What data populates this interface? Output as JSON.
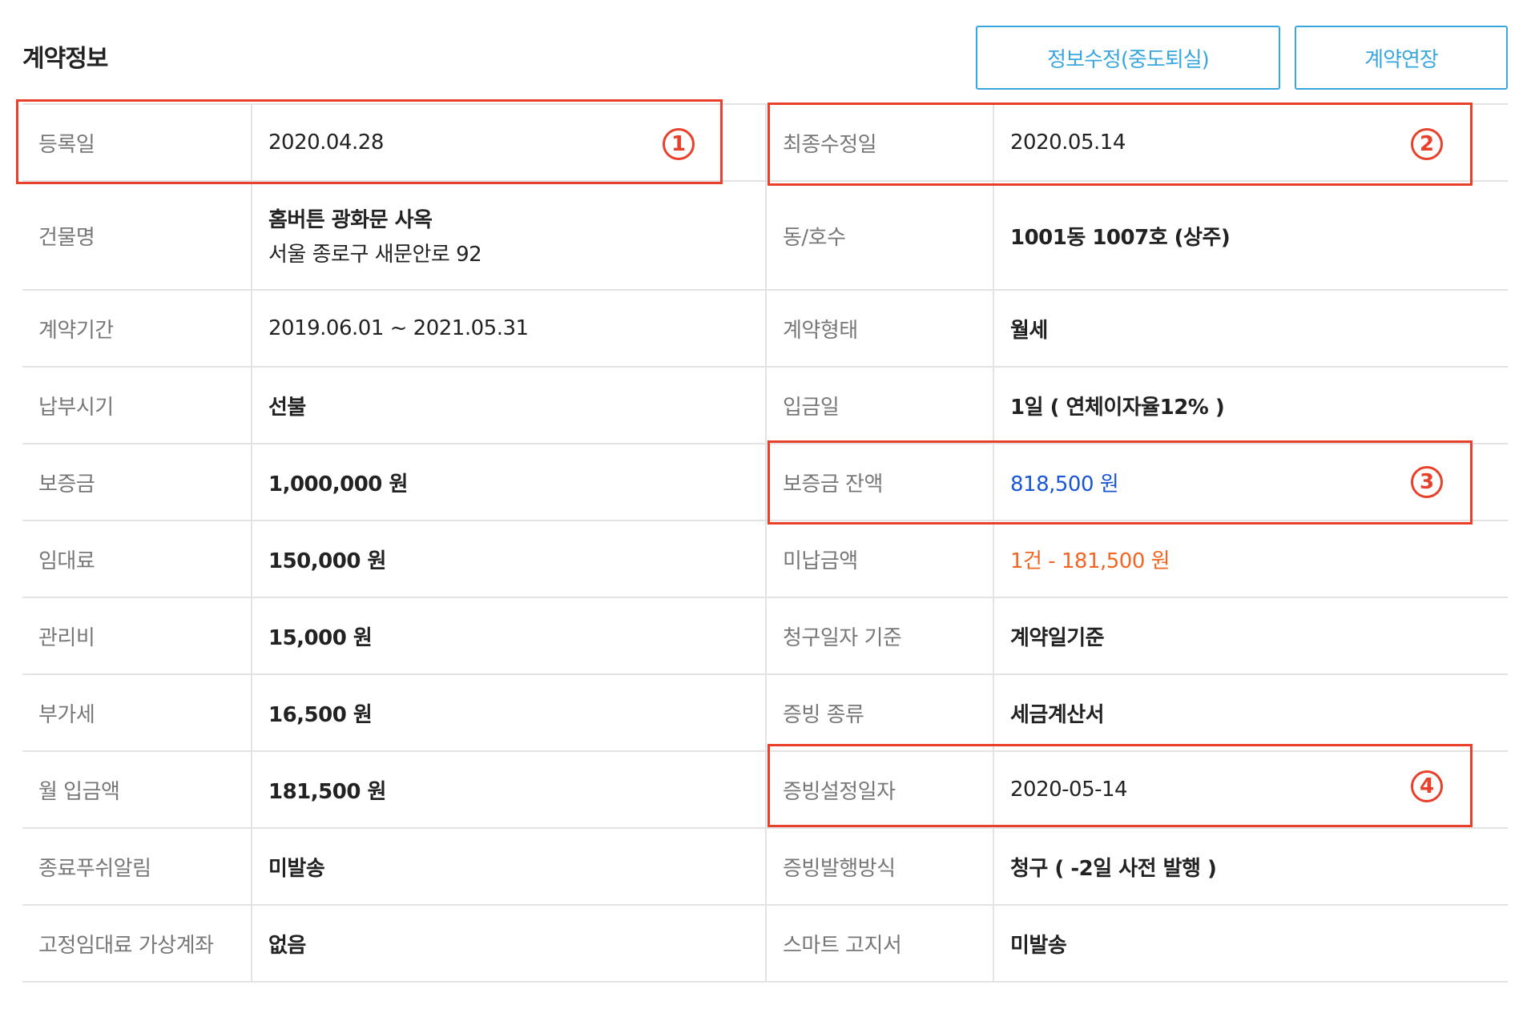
{
  "header": {
    "title": "계약정보",
    "edit_button": "정보수정(중도퇴실)",
    "extend_button": "계약연장"
  },
  "rows": [
    {
      "left_label": "등록일",
      "left_value": "2020.04.28",
      "right_label": "최종수정일",
      "right_value": "2020.05.14"
    },
    {
      "left_label": "건물명",
      "left_value": "홈버튼 광화문 사옥",
      "left_sub": "서울 종로구 새문안로 92",
      "right_label": "동/호수",
      "right_value": "1001동 1007호 (상주)"
    },
    {
      "left_label": "계약기간",
      "left_value": "2019.06.01 ~ 2021.05.31",
      "right_label": "계약형태",
      "right_value": "월세"
    },
    {
      "left_label": "납부시기",
      "left_value": "선불",
      "right_label": "입금일",
      "right_value": "1일 ( 연체이자율12% )"
    },
    {
      "left_label": "보증금",
      "left_value": "1,000,000 원",
      "right_label": "보증금 잔액",
      "right_value": "818,500 원",
      "right_color": "#1a56d6"
    },
    {
      "left_label": "임대료",
      "left_value": "150,000 원",
      "right_label": "미납금액",
      "right_value": "1건 - 181,500 원",
      "right_color": "#f26522"
    },
    {
      "left_label": "관리비",
      "left_value": "15,000 원",
      "right_label": "청구일자 기준",
      "right_value": "계약일기준"
    },
    {
      "left_label": "부가세",
      "left_value": "16,500 원",
      "right_label": "증빙 종류",
      "right_value": "세금계산서"
    },
    {
      "left_label": "월 입금액",
      "left_value": "181,500 원",
      "right_label": "증빙설정일자",
      "right_value": "2020-05-14"
    },
    {
      "left_label": "종료푸쉬알림",
      "left_value": "미발송",
      "right_label": "증빙발행방식",
      "right_value": "청구 ( -2일 사전 발행 )"
    },
    {
      "left_label": "고정임대료 가상계좌",
      "left_value": "없음",
      "right_label": "스마트 고지서",
      "right_value": "미발송"
    }
  ],
  "annotations": {
    "marker_1": "1",
    "marker_2": "2",
    "marker_3": "3",
    "marker_4": "4",
    "highlight_color": "#e8402b"
  },
  "colors": {
    "accent_button": "#39a7de",
    "label_text": "#777777",
    "value_text": "#222222",
    "deposit_balance": "#1a56d6",
    "unpaid_amount": "#f26522",
    "row_border": "#e3e3e3"
  }
}
